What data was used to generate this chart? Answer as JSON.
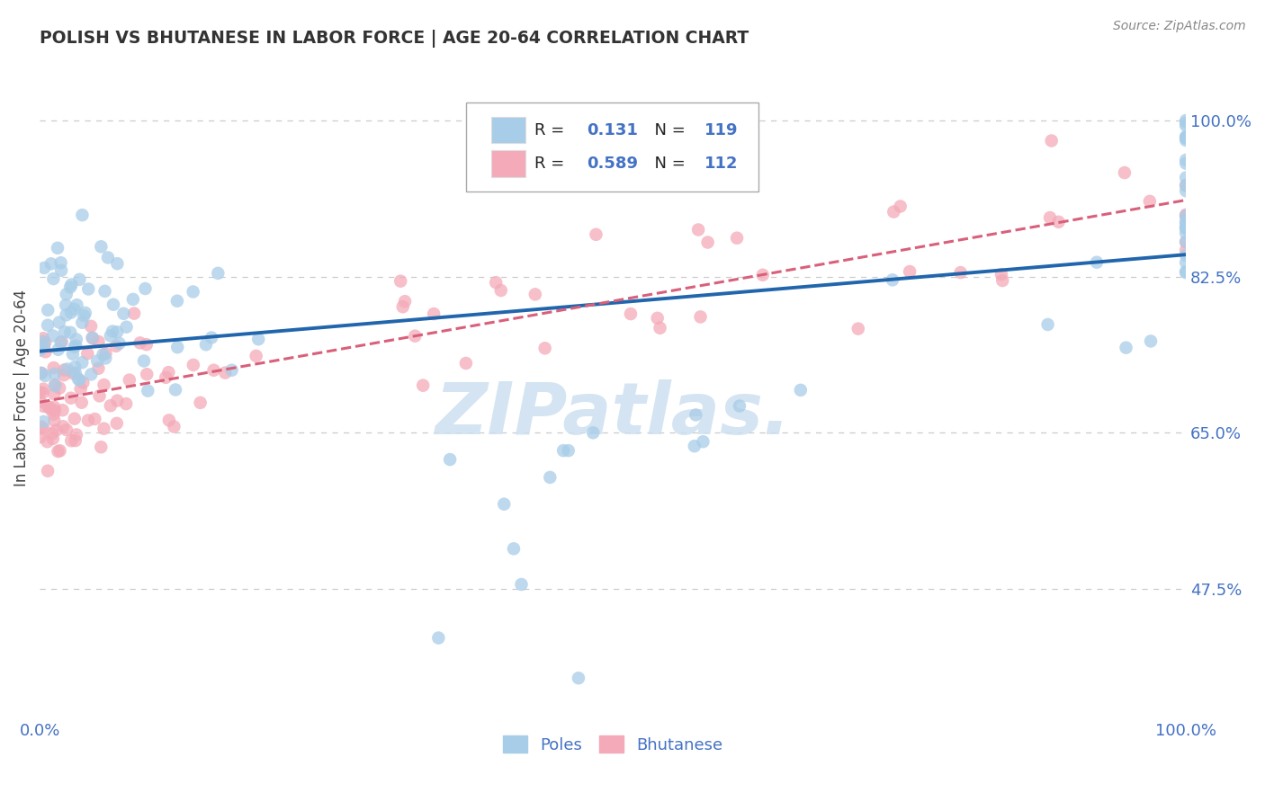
{
  "title": "POLISH VS BHUTANESE IN LABOR FORCE | AGE 20-64 CORRELATION CHART",
  "source": "Source: ZipAtlas.com",
  "ylabel": "In Labor Force | Age 20-64",
  "xlim": [
    0.0,
    1.0
  ],
  "ylim": [
    0.33,
    1.07
  ],
  "ytick_positions_right": [
    0.475,
    0.65,
    0.825,
    1.0
  ],
  "ytick_labels_right": [
    "47.5%",
    "65.0%",
    "82.5%",
    "100.0%"
  ],
  "xtick_positions": [
    0.0,
    1.0
  ],
  "xtick_labels": [
    "0.0%",
    "100.0%"
  ],
  "poles_R": "0.131",
  "poles_N": "119",
  "bhutanese_R": "0.589",
  "bhutanese_N": "112",
  "blue_scatter_color": "#a8cde8",
  "pink_scatter_color": "#f4aab8",
  "blue_line_color": "#2166ac",
  "pink_line_color": "#d9607a",
  "axis_label_color": "#4472c4",
  "title_color": "#333333",
  "source_color": "#888888",
  "ylabel_color": "#444444",
  "grid_color": "#cccccc",
  "watermark_color": "#cde0f0",
  "legend_edge_color": "#aaaaaa",
  "bottom_legend_color": "#4472c4"
}
